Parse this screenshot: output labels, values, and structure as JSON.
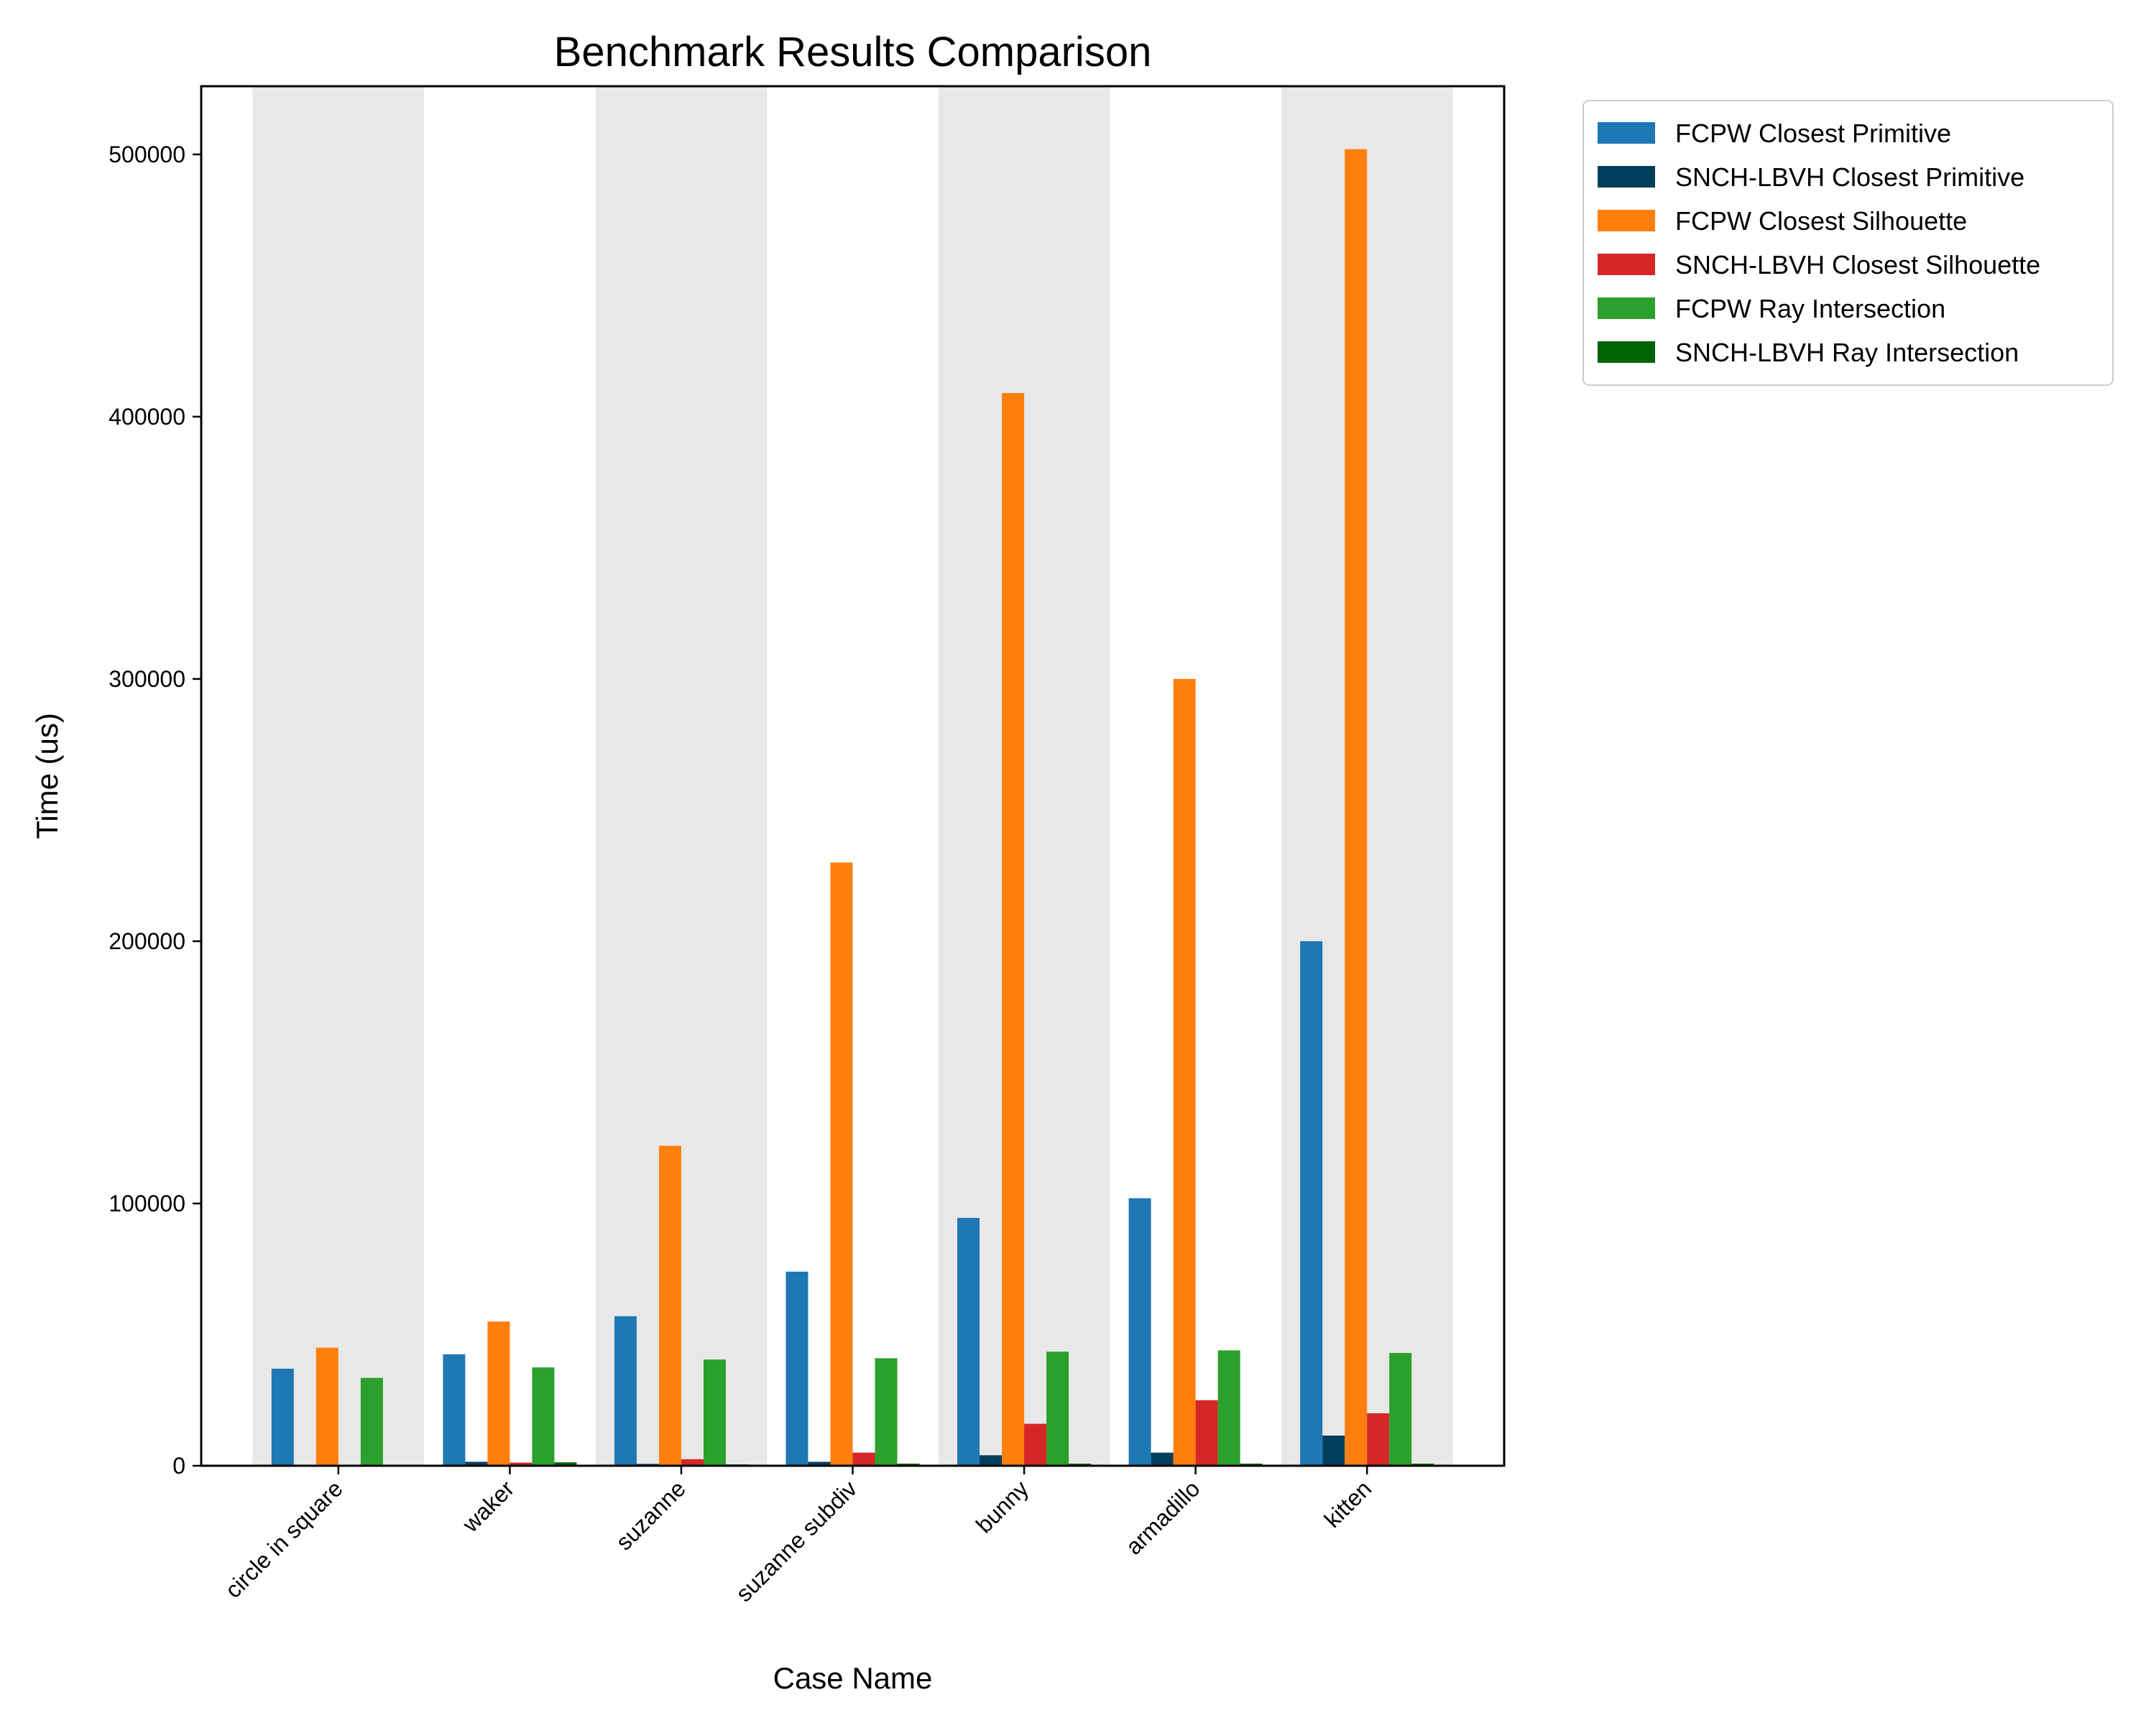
{
  "chart_data": {
    "type": "bar",
    "title": "Benchmark Results Comparison",
    "xlabel": "Case Name",
    "ylabel": "Time (us)",
    "ylim": [
      0,
      526000
    ],
    "yticks": [
      0,
      100000,
      200000,
      300000,
      400000,
      500000
    ],
    "categories": [
      "circle in square",
      "waker",
      "suzanne",
      "suzanne subdiv",
      "bunny",
      "armadillo",
      "kitten"
    ],
    "grid": false,
    "alternating_category_shading": "#e8e8e8",
    "legend_position": "outside-top-right",
    "series": [
      {
        "name": "FCPW Closest Primitive",
        "color": "#1f77b4",
        "values": [
          37000,
          42500,
          57000,
          74000,
          94500,
          102000,
          200000
        ]
      },
      {
        "name": "SNCH-LBVH Closest Primitive",
        "color": "#003f5c",
        "values": [
          200,
          1500,
          700,
          1500,
          4000,
          5000,
          11500
        ]
      },
      {
        "name": "FCPW Closest Silhouette",
        "color": "#ff7f0e",
        "values": [
          45000,
          55000,
          122000,
          230000,
          409000,
          300000,
          502000
        ]
      },
      {
        "name": "SNCH-LBVH Closest Silhouette",
        "color": "#d62728",
        "values": [
          300,
          1200,
          2500,
          5000,
          16000,
          25000,
          20000
        ]
      },
      {
        "name": "FCPW Ray Intersection",
        "color": "#2ca02c",
        "values": [
          33500,
          37500,
          40500,
          41000,
          43500,
          44000,
          43000
        ]
      },
      {
        "name": "SNCH-LBVH Ray Intersection",
        "color": "#006400",
        "values": [
          200,
          1300,
          500,
          800,
          800,
          800,
          800
        ]
      }
    ]
  }
}
